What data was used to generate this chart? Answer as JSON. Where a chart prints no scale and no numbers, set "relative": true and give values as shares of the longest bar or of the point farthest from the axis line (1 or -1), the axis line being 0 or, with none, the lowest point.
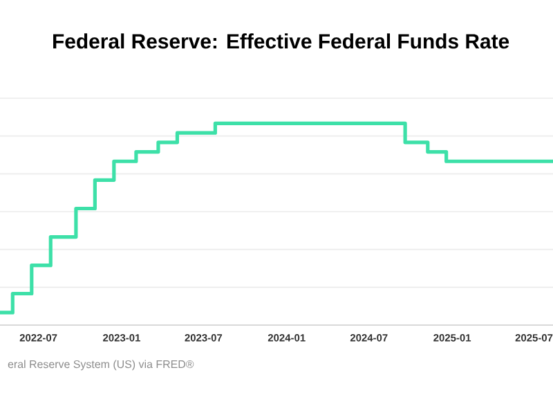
{
  "chart_data": {
    "type": "step",
    "title": "Federal Reserve: Effective Federal Funds Rate",
    "x": [
      "2022-04-07",
      "2022-05-05",
      "2022-06-16",
      "2022-07-28",
      "2022-09-22",
      "2022-11-03",
      "2022-12-15",
      "2023-02-02",
      "2023-03-23",
      "2023-05-04",
      "2023-07-27",
      "2024-09-19",
      "2024-11-08",
      "2024-12-19",
      "2025-08-12"
    ],
    "values": [
      0.062,
      0.156,
      0.296,
      0.437,
      0.578,
      0.719,
      0.812,
      0.859,
      0.906,
      0.953,
      1,
      0.906,
      0.859,
      0.812,
      0.812
    ],
    "color": "#3de0a8",
    "relative": true,
    "grid": "y",
    "xlim": [
      "2022-04-07",
      "2025-08-12"
    ],
    "xticks": [
      "2022-07",
      "2023-01",
      "2023-07",
      "2024-01",
      "2024-07",
      "2025-01",
      "2025-07"
    ],
    "annotations": [
      "eral Reserve System (US) via FRED®"
    ]
  }
}
